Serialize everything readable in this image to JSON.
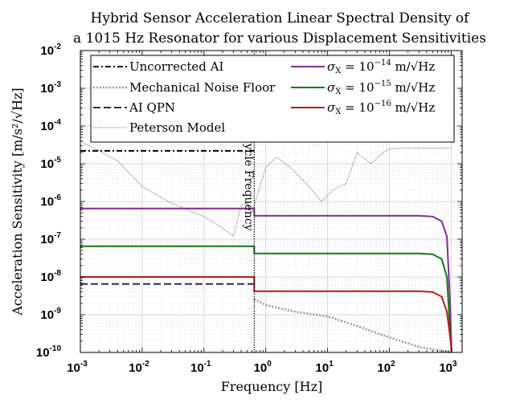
{
  "chart_data": {
    "type": "line",
    "title_line1": "Hybrid Sensor Acceleration Linear Spectral Density of",
    "title_line2": "a 1015 Hz Resonator for various Displacement Sensitivities",
    "xlabel": "Frequency [Hz]",
    "ylabel": "Acceleration Sensitivity [m/s²/√Hz]",
    "x_scale": "log",
    "y_scale": "log",
    "xlim": [
      0.001,
      1500
    ],
    "ylim": [
      1e-10,
      0.01
    ],
    "grid": true,
    "legend_position": "top",
    "x_tick_bases": [
      "10",
      "10",
      "10",
      "10",
      "10",
      "10",
      "10"
    ],
    "x_tick_exps": [
      "-3",
      "-2",
      "-1",
      "0",
      "1",
      "2",
      "3"
    ],
    "y_tick_bases": [
      "10",
      "10",
      "10",
      "10",
      "10",
      "10",
      "10",
      "10",
      "10"
    ],
    "y_tick_exps": [
      "-10",
      "-9",
      "-8",
      "-7",
      "-6",
      "-5",
      "-4",
      "-3",
      "-2"
    ],
    "annotation": "AI Cycle Frequency",
    "annotation_x": 0.65,
    "series": [
      {
        "name": "Uncorrected AI",
        "color": "#000000",
        "dash": "7,3,2,3",
        "width": 2,
        "x": [
          0.001,
          0.65
        ],
        "y": [
          2.2e-05,
          2.2e-05
        ]
      },
      {
        "name": "Mechanical Noise Floor",
        "color": "#999999",
        "dash": "2,2",
        "width": 2.5,
        "x": [
          0.65,
          1,
          3,
          10,
          30,
          100,
          300,
          1000
        ],
        "y": [
          2.6e-09,
          1.8e-09,
          1.2e-09,
          9e-10,
          5e-10,
          2.5e-10,
          1.4e-10,
          1e-10
        ]
      },
      {
        "name": "AI QPN",
        "color": "#333333",
        "dash": "9,4",
        "width": 2,
        "x": [
          0.001,
          0.65
        ],
        "y": [
          6.5e-09,
          6.5e-09
        ]
      },
      {
        "name": "Peterson Model",
        "color": "#555555",
        "dash": "1,1.5",
        "width": 1,
        "x": [
          0.001,
          0.004,
          0.01,
          0.03,
          0.1,
          0.2,
          0.3,
          0.4,
          0.5,
          0.6,
          1,
          1.5,
          2.5,
          5,
          8,
          12,
          20,
          30,
          50,
          80,
          100,
          200,
          500,
          1000
        ],
        "y": [
          4e-05,
          1.2e-05,
          2.5e-06,
          9e-07,
          4e-07,
          2e-07,
          1.2e-07,
          8e-07,
          9e-07,
          5e-07,
          8e-06,
          1.5e-05,
          8e-06,
          2.5e-06,
          1e-06,
          2e-06,
          3e-06,
          2e-05,
          1e-05,
          2e-05,
          2.5e-05,
          2.6e-05,
          2.6e-05,
          2.6e-05
        ]
      },
      {
        "name": "σX = 10⁻¹⁴ m/√Hz",
        "label_pre": "σ",
        "label_sub": "X",
        "label_mid": " = 10",
        "label_exp": "−14",
        "label_post": " m/√Hz",
        "color": "#7E2F8E",
        "dash": "",
        "width": 2,
        "x": [
          0.001,
          0.65,
          0.65,
          300,
          500,
          700,
          850,
          950,
          1015
        ],
        "y": [
          6.5e-07,
          6.5e-07,
          4.2e-07,
          4.2e-07,
          4e-07,
          3e-07,
          1.2e-07,
          3e-09,
          1e-10
        ]
      },
      {
        "name": "σX = 10⁻¹⁵ m/√Hz",
        "label_pre": "σ",
        "label_sub": "X",
        "label_mid": " = 10",
        "label_exp": "−15",
        "label_post": " m/√Hz",
        "color": "#0E7B13",
        "dash": "",
        "width": 2,
        "x": [
          0.001,
          0.65,
          0.65,
          300,
          500,
          700,
          850,
          950,
          1015
        ],
        "y": [
          6.5e-08,
          6.5e-08,
          4.2e-08,
          4.2e-08,
          4e-08,
          3e-08,
          1e-08,
          5e-10,
          1e-10
        ]
      },
      {
        "name": "σX = 10⁻¹⁶ m/√Hz",
        "label_pre": "σ",
        "label_sub": "X",
        "label_mid": " = 10",
        "label_exp": "−16",
        "label_post": " m/√Hz",
        "color": "#C01818",
        "dash": "",
        "width": 2,
        "x": [
          0.001,
          0.65,
          0.65,
          300,
          500,
          700,
          850,
          950,
          1015
        ],
        "y": [
          1e-08,
          1e-08,
          4.2e-09,
          4.2e-09,
          4e-09,
          3e-09,
          1.2e-09,
          3e-10,
          1e-10
        ]
      }
    ]
  }
}
